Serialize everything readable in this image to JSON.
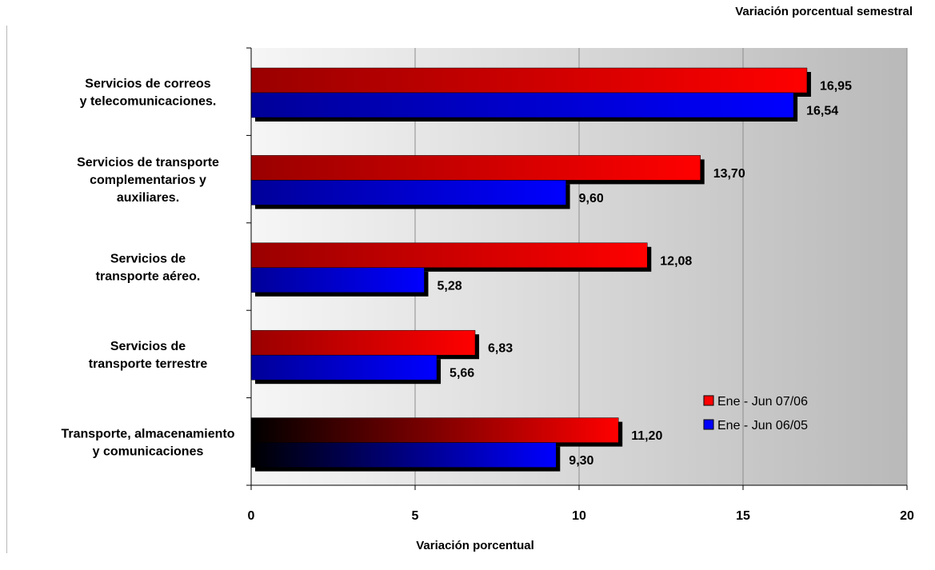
{
  "chart_data": {
    "type": "bar",
    "orientation": "horizontal",
    "title": "Variación porcentual semestral",
    "xlabel": "Variación porcentual",
    "ylabel": "",
    "xlim": [
      0,
      20
    ],
    "x_ticks": [
      "0",
      "5",
      "10",
      "15",
      "20"
    ],
    "grid": true,
    "legend_position": "bottom-right",
    "categories": [
      [
        "Servicios de correos",
        "y telecomunicaciones."
      ],
      [
        "Servicios de transporte",
        "complementarios y",
        "auxiliares."
      ],
      [
        "Servicios de",
        "transporte aéreo."
      ],
      [
        "Servicios de",
        "transporte terrestre"
      ],
      [
        "Transporte, almacenamiento",
        "y comunicaciones"
      ]
    ],
    "series": [
      {
        "name": "Ene - Jun 07/06",
        "color": "#ff0000",
        "values": [
          16.95,
          13.7,
          12.08,
          6.83,
          11.2
        ],
        "labels": [
          "16,95",
          "13,70",
          "12,08",
          "6,83",
          "11,20"
        ]
      },
      {
        "name": "Ene - Jun 06/05",
        "color": "#0000ff",
        "values": [
          16.54,
          9.6,
          5.28,
          5.66,
          9.3
        ],
        "labels": [
          "16,54",
          "9,60",
          "5,28",
          "5,66",
          "9,30"
        ]
      }
    ]
  }
}
